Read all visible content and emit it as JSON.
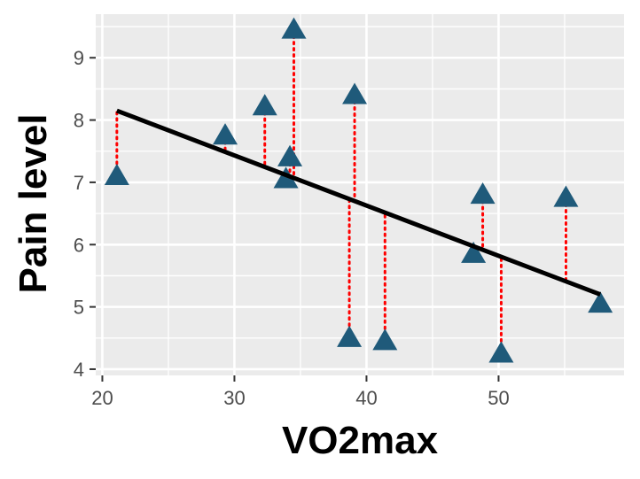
{
  "chart_data": {
    "type": "scatter",
    "xlabel": "VO2max",
    "ylabel": "Pain level",
    "xlim": [
      19.5,
      59.5
    ],
    "ylim": [
      3.9,
      9.7
    ],
    "x_ticks": [
      20,
      30,
      40,
      50
    ],
    "y_ticks": [
      4,
      5,
      6,
      7,
      8,
      9
    ],
    "grid": true,
    "points": [
      {
        "x": 21.1,
        "y": 7.1
      },
      {
        "x": 29.3,
        "y": 7.75
      },
      {
        "x": 32.3,
        "y": 8.22
      },
      {
        "x": 33.9,
        "y": 7.05
      },
      {
        "x": 34.2,
        "y": 7.4
      },
      {
        "x": 34.5,
        "y": 9.45
      },
      {
        "x": 38.7,
        "y": 4.5
      },
      {
        "x": 39.1,
        "y": 8.4
      },
      {
        "x": 41.4,
        "y": 4.45
      },
      {
        "x": 48.1,
        "y": 5.85
      },
      {
        "x": 48.8,
        "y": 6.8
      },
      {
        "x": 50.2,
        "y": 4.25
      },
      {
        "x": 55.1,
        "y": 6.75
      },
      {
        "x": 57.7,
        "y": 5.05
      }
    ],
    "regression_line": {
      "x_start": 21.1,
      "y_start": 8.15,
      "x_end": 57.7,
      "y_end": 5.2
    },
    "colors": {
      "panel_background": "#ebebeb",
      "grid": "#ffffff",
      "point": "#1f5a7a",
      "residual": "#ff0000",
      "regression": "#000000"
    }
  }
}
